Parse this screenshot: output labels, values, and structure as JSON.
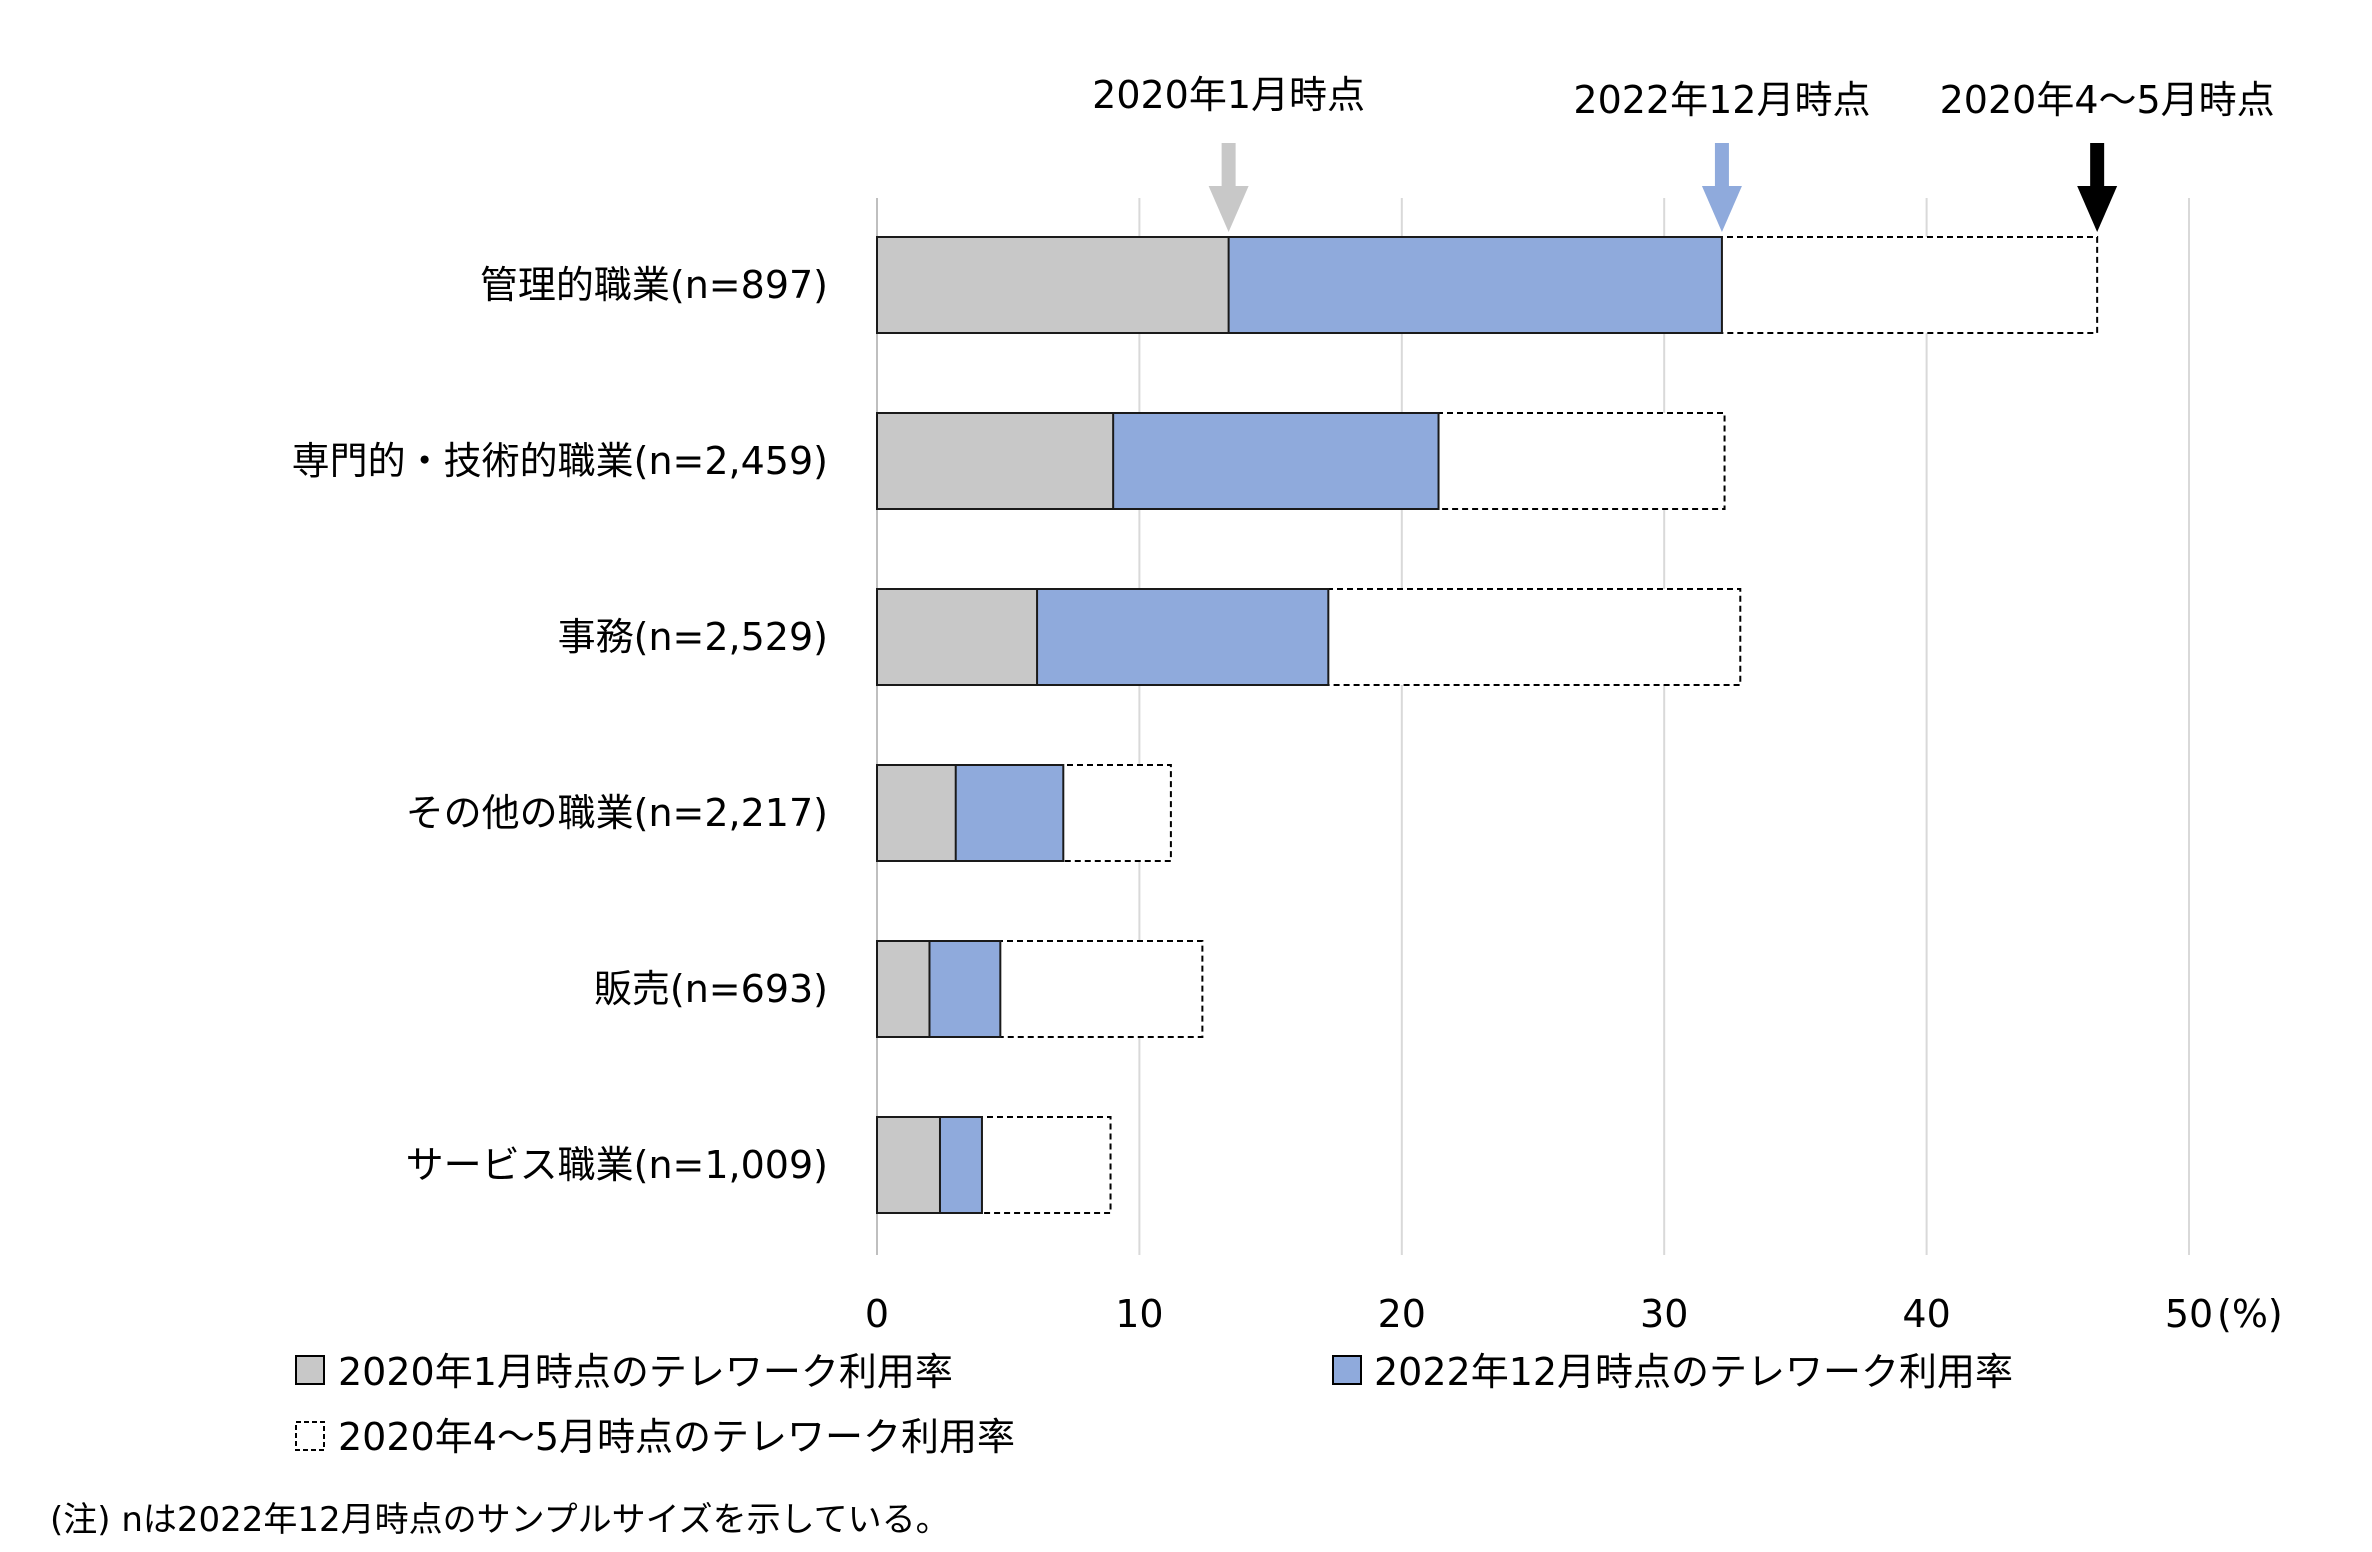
{
  "chart_data": {
    "type": "bar",
    "orientation": "horizontal",
    "categories": [
      "管理的職業(n=897)",
      "専門的・技術的職業(n=2,459)",
      "事務(n=2,529)",
      "その他の職業(n=2,217)",
      "販売(n=693)",
      "サービス職業(n=1,009)"
    ],
    "series": [
      {
        "name": "2020年1月時点のテレワーク利用率",
        "values": [
          13.4,
          9.0,
          6.1,
          3.0,
          2.0,
          2.4
        ],
        "color": "#c8c8c8",
        "style": "solid"
      },
      {
        "name": "2022年12月時点のテレワーク利用率",
        "values": [
          32.2,
          21.4,
          17.2,
          7.1,
          4.7,
          4.0
        ],
        "color": "#8faadc",
        "style": "solid"
      },
      {
        "name": "2020年4～5月時点のテレワーク利用率",
        "values": [
          46.5,
          32.3,
          32.9,
          11.2,
          12.4,
          8.9
        ],
        "color": "#ffffff",
        "style": "dashed"
      }
    ],
    "xlim": [
      0,
      50
    ],
    "xticks": [
      "0",
      "10",
      "20",
      "30",
      "40",
      "50"
    ],
    "unit_label": "(%)",
    "grid": true,
    "legend_position": "bottom",
    "annotations": [
      {
        "label": "2020年1月時点",
        "value": 13.4,
        "color": "#c8c8c8"
      },
      {
        "label": "2022年12月時点",
        "value": 32.2,
        "color": "#8faadc"
      },
      {
        "label": "2020年4～5月時点",
        "value": 46.5,
        "color": "#000000"
      }
    ]
  },
  "note": "(注) nは2022年12月時点のサンプルサイズを示している。"
}
